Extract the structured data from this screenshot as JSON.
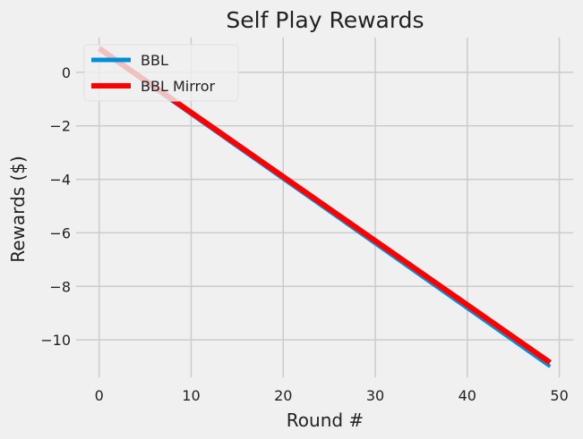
{
  "chart_data": {
    "type": "line",
    "title": "Self Play Rewards",
    "xlabel": "Round #",
    "ylabel": "Rewards ($)",
    "xlim": [
      -2.5,
      51.5
    ],
    "ylim": [
      -11.4,
      1.3
    ],
    "xticks": [
      0,
      10,
      20,
      30,
      40,
      50
    ],
    "yticks": [
      0,
      -2,
      -4,
      -6,
      -8,
      -10
    ],
    "xtick_labels": [
      "0",
      "10",
      "20",
      "30",
      "40",
      "50"
    ],
    "ytick_labels": [
      "0",
      "−2",
      "−4",
      "−6",
      "−8",
      "−10"
    ],
    "grid": true,
    "legend_position": "upper-left",
    "series": [
      {
        "name": "BBL",
        "color": "#008fd5",
        "x": [
          0,
          49
        ],
        "y": [
          0.85,
          -11.0
        ]
      },
      {
        "name": "BBL Mirror",
        "color": "#ff0000",
        "x": [
          0,
          49
        ],
        "y": [
          0.9,
          -10.85
        ]
      }
    ]
  }
}
